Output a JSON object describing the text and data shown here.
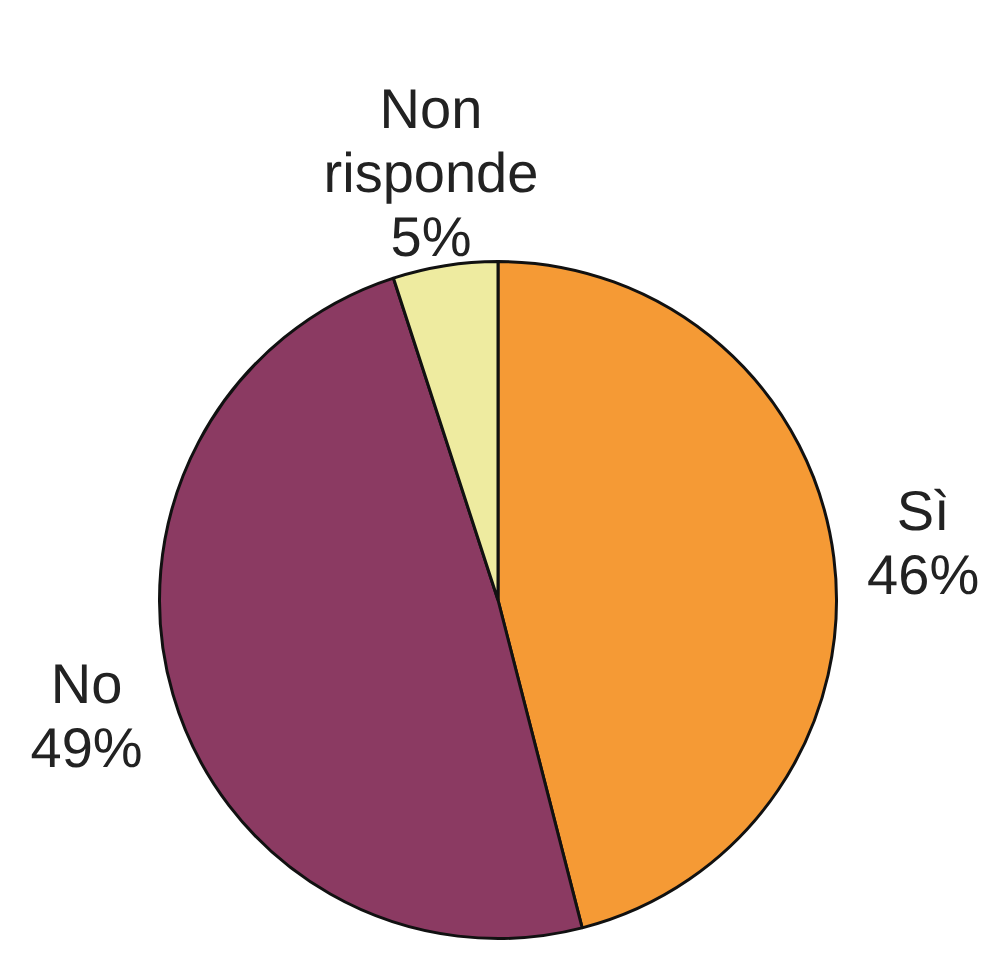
{
  "chart_data": {
    "type": "pie",
    "categories": [
      "Sì",
      "No",
      "Non risponde"
    ],
    "values": [
      46,
      49,
      5
    ],
    "colors": [
      "#f59a35",
      "#8b3a62",
      "#eeeba0"
    ],
    "value_labels": [
      "46%",
      "49%",
      "5%"
    ]
  }
}
